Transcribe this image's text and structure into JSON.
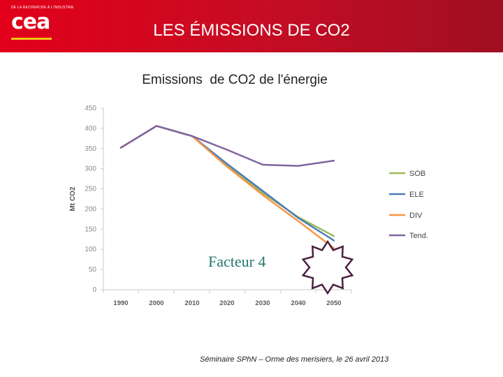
{
  "header": {
    "title": "LES ÉMISSIONS DE CO2",
    "logo_text": "cea",
    "logo_tagline": "DE LA RECHERCHE À L'INDUSTRIE"
  },
  "annotation": {
    "text": "Facteur 4"
  },
  "footer": {
    "text": "Séminaire SPhN – Orme des merisiers, le 26 avril 2013"
  },
  "chart_data": {
    "type": "line",
    "title": "Emissions  de CO2 de l'énergie",
    "ylabel": "Mt CO2",
    "xlabel": "",
    "ylim": [
      0,
      450
    ],
    "yticks": [
      0,
      50,
      100,
      150,
      200,
      250,
      300,
      350,
      400,
      450
    ],
    "categories": [
      "1990",
      "2000",
      "2010",
      "2020",
      "2030",
      "2040",
      "2050"
    ],
    "grid": false,
    "legend_position": "right",
    "series": [
      {
        "name": "SOB",
        "color": "#9bbb59",
        "values": [
          352,
          406,
          381,
          308,
          240,
          180,
          133
        ]
      },
      {
        "name": "ELE",
        "color": "#4a7ebb",
        "values": [
          352,
          406,
          381,
          312,
          245,
          178,
          122
        ]
      },
      {
        "name": "DIV",
        "color": "#f79646",
        "values": [
          352,
          406,
          381,
          305,
          235,
          170,
          103
        ]
      },
      {
        "name": "Tend.",
        "color": "#8064a2",
        "values": [
          352,
          406,
          381,
          347,
          310,
          307,
          320
        ]
      }
    ]
  }
}
